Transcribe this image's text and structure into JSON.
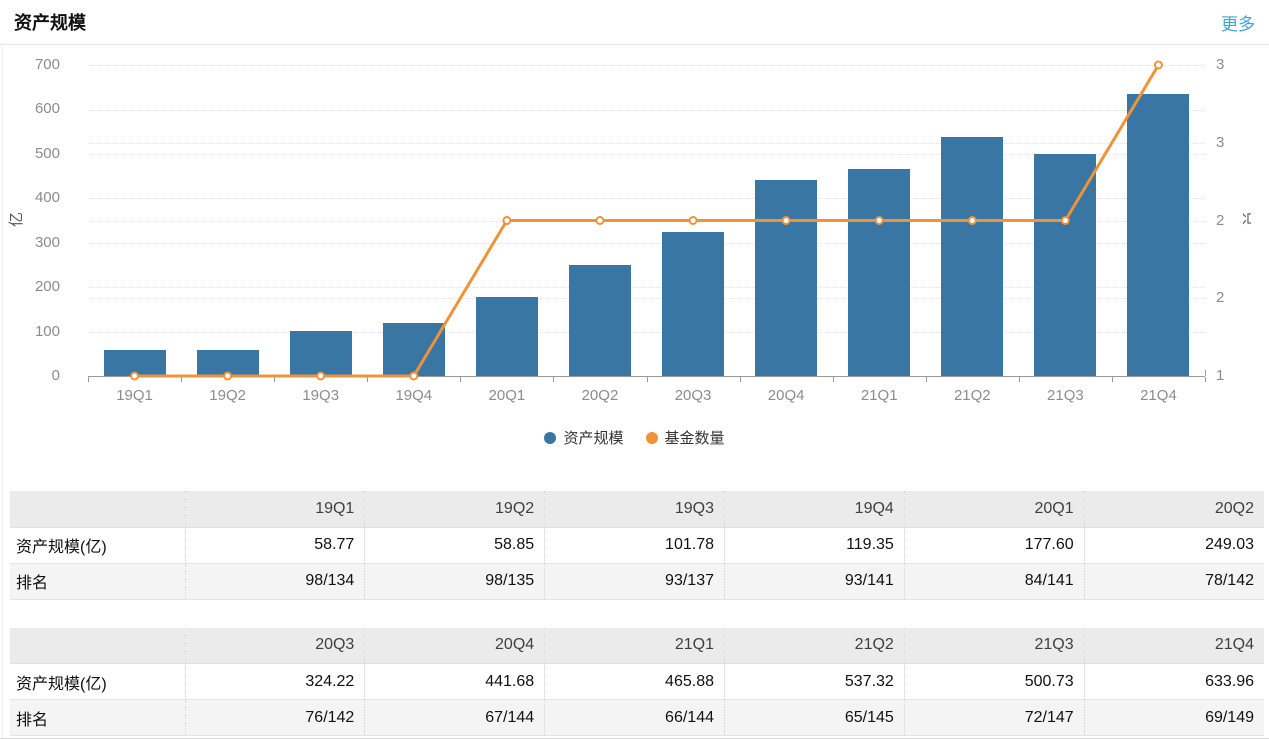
{
  "header": {
    "title": "资产规模",
    "more_label": "更多",
    "more_color": "#3da4d4"
  },
  "colors": {
    "bar": "#3a76a4",
    "line": "#ef9339"
  },
  "chart_data": {
    "type": "bar",
    "categories": [
      "19Q1",
      "19Q2",
      "19Q3",
      "19Q4",
      "20Q1",
      "20Q2",
      "20Q3",
      "20Q4",
      "21Q1",
      "21Q2",
      "21Q3",
      "21Q4"
    ],
    "series": [
      {
        "name": "资产规模",
        "type": "bar",
        "axis": "left",
        "color": "#3a76a4",
        "values": [
          58.77,
          58.85,
          101.78,
          119.35,
          177.6,
          249.03,
          324.22,
          441.68,
          465.88,
          537.32,
          500.73,
          633.96
        ]
      },
      {
        "name": "基金数量",
        "type": "line",
        "axis": "right",
        "color": "#ef9339",
        "values": [
          1,
          1,
          1,
          1,
          2,
          2,
          2,
          2,
          2,
          2,
          2,
          3
        ]
      }
    ],
    "left_axis": {
      "unit": "亿",
      "min": 0,
      "max": 700,
      "tick_step": 100,
      "tick_labels": [
        "0",
        "100",
        "200",
        "300",
        "400",
        "500",
        "600",
        "700"
      ]
    },
    "right_axis": {
      "unit": "只",
      "min": 1,
      "max": 3,
      "tick_values": [
        3,
        2.5,
        2,
        1.5,
        1
      ],
      "tick_labels": [
        "3",
        "3",
        "2",
        "2",
        "1"
      ]
    },
    "legend": [
      {
        "label": "资产规模",
        "color": "#3a76a4"
      },
      {
        "label": "基金数量",
        "color": "#ef9339"
      }
    ],
    "grid": true,
    "legend_position": "bottom-center"
  },
  "tables": [
    {
      "columns": [
        "19Q1",
        "19Q2",
        "19Q3",
        "19Q4",
        "20Q1",
        "20Q2"
      ],
      "rows": [
        {
          "label": "资产规模(亿)",
          "values": [
            "58.77",
            "58.85",
            "101.78",
            "119.35",
            "177.60",
            "249.03"
          ]
        },
        {
          "label": "排名",
          "values": [
            "98/134",
            "98/135",
            "93/137",
            "93/141",
            "84/141",
            "78/142"
          ]
        }
      ]
    },
    {
      "columns": [
        "20Q3",
        "20Q4",
        "21Q1",
        "21Q2",
        "21Q3",
        "21Q4"
      ],
      "rows": [
        {
          "label": "资产规模(亿)",
          "values": [
            "324.22",
            "441.68",
            "465.88",
            "537.32",
            "500.73",
            "633.96"
          ]
        },
        {
          "label": "排名",
          "values": [
            "76/142",
            "67/144",
            "66/144",
            "65/145",
            "72/147",
            "69/149"
          ]
        }
      ]
    }
  ]
}
